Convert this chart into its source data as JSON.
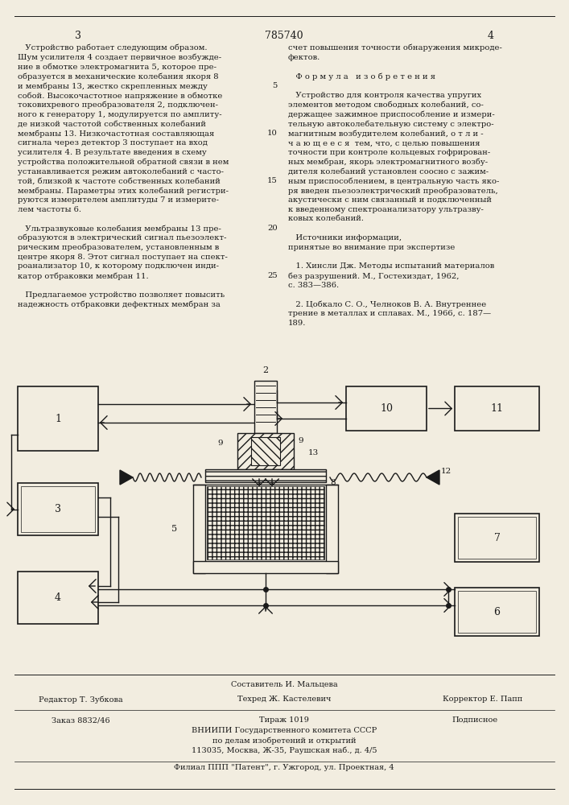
{
  "page_number_left": "3",
  "patent_number": "785740",
  "page_number_right": "4",
  "background_color": "#f2ede0",
  "text_color": "#1a1a1a",
  "left_column_text": [
    "   Устройство работает следующим образом.",
    "Шум усилителя 4 создает первичное возбужде-",
    "ние в обмотке электромагнита 5, которое пре-",
    "образуется в механические колебания якоря 8",
    "и мембраны 13, жестко скрепленных между",
    "собой. Высокочастотное напряжение в обмотке",
    "токовихревого преобразователя 2, подключен-",
    "ного к генератору 1, модулируется по амплиту-",
    "де низкой частотой собственных колебаний",
    "мембраны 13. Низкочастотная составляющая",
    "сигнала через детектор 3 поступает на вход",
    "усилителя 4. В результате введения в схему",
    "устройства положительной обратной связи в нем",
    "устанавливается режим автоколебаний с часто-",
    "той, близкой к частоте собственных колебаний",
    "мембраны. Параметры этих колебаний регистри-",
    "руются измерителем амплитуды 7 и измерите-",
    "лем частоты 6.",
    "",
    "   Ультразвуковые колебания мембраны 13 пре-",
    "образуются в электрический сигнал пьезоэлект-",
    "рическим преобразователем, установленным в",
    "центре якоря 8. Этот сигнал поступает на спект-",
    "роанализатор 10, к которому подключен инди-",
    "катор отбраковки мембран 11.",
    "",
    "   Предлагаемое устройство позволяет повысить",
    "надежность отбраковки дефектных мембран за"
  ],
  "right_column_text": [
    "счет повышения точности обнаружения микроде-",
    "фектов.",
    "",
    "   Ф о р м у л а   и з о б р е т е н и я",
    "",
    "   Устройство для контроля качества упругих",
    "элементов методом свободных колебаний, со-",
    "держащее зажимное приспособление и измери-",
    "тельную автоколебательную систему с электро-",
    "магнитным возбудителем колебаний, о т л и -",
    "ч а ю щ е е с я  тем, что, с целью повышения",
    "точности при контроле кольцевых гофрирован-",
    "ных мембран, якорь электромагнитного возбу-",
    "дителя колебаний установлен соосно с зажим-",
    "ным приспособлением, в центральную часть яко-",
    "ря введен пьезоэлектрический преобразователь,",
    "акустически с ним связанный и подключенный",
    "к введенному спектроанализатору ультразву-",
    "ковых колебаний.",
    "",
    "   Источники информации,",
    "принятые во внимание при экспертизе",
    "",
    "   1. Хинсли Дж. Методы испытаний материалов",
    "без разрушений. М., Гостехиздат, 1962,",
    "с. 383—386.",
    "",
    "   2. Цобкало С. О., Челноков В. А. Внутреннее",
    "трение в металлах и сплавах. М., 1966, с. 187—",
    "189."
  ],
  "line_numbers": [
    "5",
    "10",
    "15",
    "20",
    "25"
  ],
  "footer_composer": "Составитель И. Мальцева",
  "footer_editor": "Редактор Т. Зубкова",
  "footer_techred": "Техред Ж. Кастелевич",
  "footer_corrector": "Корректор Е. Папп",
  "footer_order": "Заказ 8832/46",
  "footer_edition": "Тираж 1019",
  "footer_subscription": "Подписное",
  "footer_org_line1": "ВНИИПИ Государственного комитета СССР",
  "footer_org_line2": "по делам изобретений и открытий",
  "footer_org_line3": "113035, Москва, Ж-35, Раушская наб., д. 4/5",
  "footer_branch": "Филиал ППП \"Патент\", г. Ужгород, ул. Проектная, 4"
}
